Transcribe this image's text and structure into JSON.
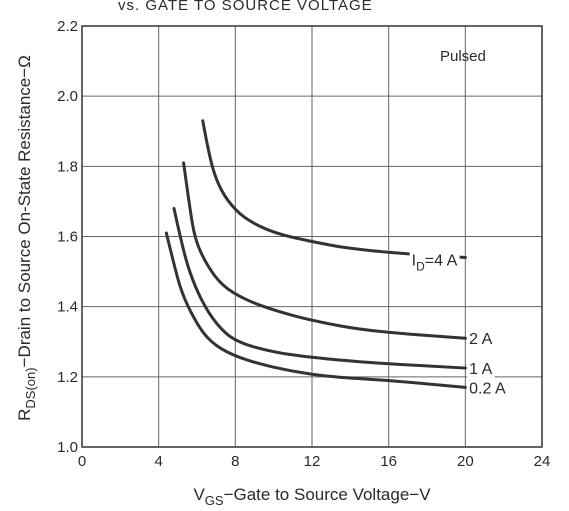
{
  "chart_data": {
    "type": "line",
    "title": "vs. GATE TO SOURCE VOLTAGE",
    "annotation": "Pulsed",
    "xlabel": {
      "prefix": "V",
      "sub": "GS",
      "rest": "−Gate to Source Voltage−V"
    },
    "ylabel": {
      "prefix": "R",
      "sub": "DS(on)",
      "rest": "−Drain to Source On-State Resistance−Ω"
    },
    "xlim": [
      0,
      24
    ],
    "ylim": [
      1.0,
      2.2
    ],
    "xticks": [
      0,
      4,
      8,
      12,
      16,
      20,
      24
    ],
    "xtick_labels": [
      "0",
      "4",
      "8",
      "12",
      "16",
      "20",
      "24"
    ],
    "yticks": [
      1.0,
      1.2,
      1.4,
      1.6,
      1.8,
      2.0,
      2.2
    ],
    "ytick_labels": [
      "1.0",
      "1.2",
      "1.4",
      "1.6",
      "1.8",
      "2.0",
      "2.2"
    ],
    "grid": true,
    "line_color": "#333333",
    "series": [
      {
        "name": "0.2 A",
        "label_parts": {
          "prefix": "",
          "sub": "",
          "rest": "0.2 A"
        },
        "label_anchor": [
          20.2,
          1.17
        ],
        "x": [
          4.4,
          4.8,
          5.2,
          5.8,
          6.5,
          7.5,
          9,
          11,
          13,
          16,
          20
        ],
        "y": [
          1.61,
          1.52,
          1.44,
          1.37,
          1.31,
          1.27,
          1.24,
          1.215,
          1.2,
          1.19,
          1.17
        ]
      },
      {
        "name": "1 A",
        "label_parts": {
          "prefix": "",
          "sub": "",
          "rest": "1 A"
        },
        "label_anchor": [
          20.2,
          1.225
        ],
        "x": [
          4.8,
          5.2,
          5.6,
          6.2,
          7.0,
          8.0,
          10,
          12,
          15,
          20
        ],
        "y": [
          1.68,
          1.58,
          1.5,
          1.42,
          1.35,
          1.3,
          1.27,
          1.255,
          1.24,
          1.225
        ]
      },
      {
        "name": "2 A",
        "label_parts": {
          "prefix": "",
          "sub": "",
          "rest": "2 A"
        },
        "label_anchor": [
          20.2,
          1.31
        ],
        "x": [
          5.3,
          5.6,
          5.9,
          6.5,
          7.3,
          8.5,
          10,
          12,
          15,
          20
        ],
        "y": [
          1.81,
          1.69,
          1.59,
          1.52,
          1.46,
          1.42,
          1.39,
          1.36,
          1.33,
          1.31
        ]
      },
      {
        "name": "ID=4 A",
        "label_parts": {
          "prefix": "I",
          "sub": "D",
          "rest": "=4 A"
        },
        "label_anchor": [
          17.2,
          1.535
        ],
        "x": [
          6.3,
          6.6,
          7.0,
          7.6,
          8.5,
          10,
          12,
          14,
          17,
          20
        ],
        "y": [
          1.93,
          1.84,
          1.76,
          1.7,
          1.65,
          1.61,
          1.585,
          1.565,
          1.55,
          1.54
        ]
      }
    ]
  }
}
